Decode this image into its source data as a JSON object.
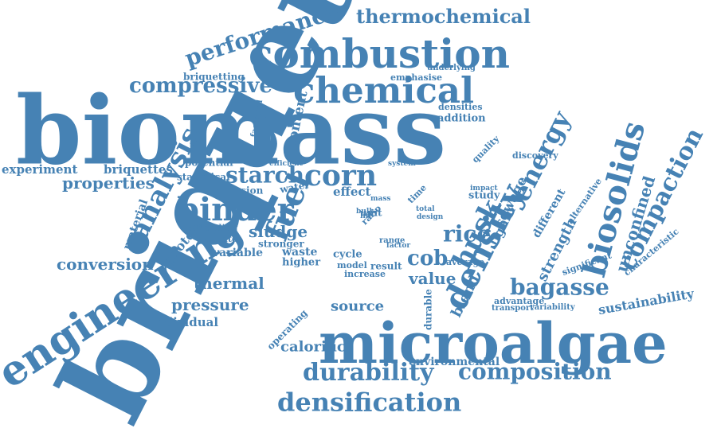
{
  "word_color": "#4682b4",
  "background_color": "#ffffff",
  "words": [
    "briquette",
    "biomass",
    "microalgae",
    "engineering",
    "combustion",
    "chemical",
    "density",
    "densification",
    "durability",
    "composition",
    "biosolids",
    "husk",
    "energy",
    "binder",
    "corn",
    "starch",
    "compressive",
    "performance",
    "thermochemical",
    "analysis",
    "compaction",
    "bagasse",
    "fuel",
    "rice",
    "cob",
    "pressure",
    "thermal",
    "conversion",
    "properties",
    "experiment",
    "briquettes",
    "unconfined",
    "strength",
    "blend",
    "sustainability",
    "value",
    "source",
    "calorific",
    "sludge",
    "sewage",
    "content",
    "lignin",
    "individual",
    "environmental",
    "protein",
    "material",
    "variable",
    "waste",
    "higher",
    "stronger",
    "effect",
    "addition",
    "densities",
    "briquetting",
    "emphasise",
    "underlying",
    "factorial",
    "statistical",
    "potential",
    "abrasion",
    "water",
    "blending",
    "evaluate",
    "operating",
    "cycle",
    "model",
    "increase",
    "result",
    "average",
    "durable",
    "advantage",
    "transport",
    "variability",
    "significant",
    "characteristic",
    "alternative",
    "different",
    "quality",
    "discovery",
    "study",
    "impact",
    "system",
    "efficient",
    "design",
    "total",
    "range",
    "factor",
    "unit",
    "bulk",
    "life",
    "time",
    "mass",
    "ratio"
  ]
}
